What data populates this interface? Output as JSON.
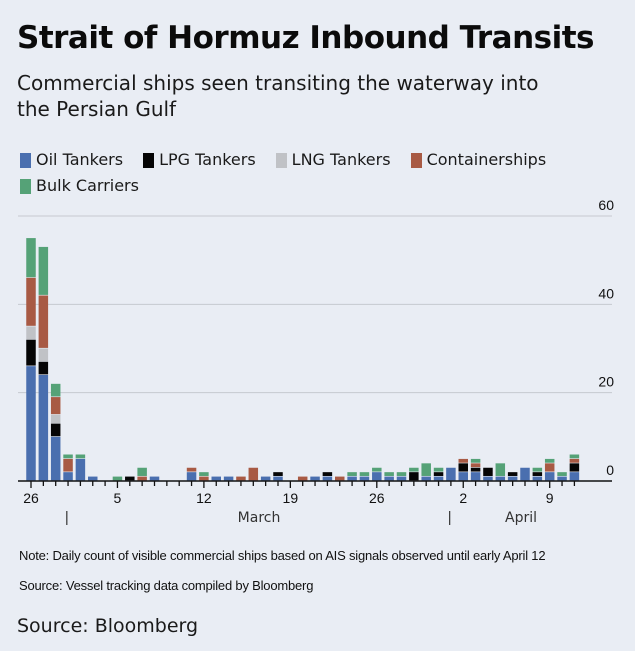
{
  "header": {
    "title": "Strait of Hormuz Inbound Transits",
    "subtitle": "Commercial ships seen transiting the waterway into the Persian Gulf"
  },
  "legend": [
    {
      "label": "Oil Tankers",
      "color": "#4a6faf"
    },
    {
      "label": "LPG Tankers",
      "color": "#050505"
    },
    {
      "label": "LNG Tankers",
      "color": "#c0c2c6"
    },
    {
      "label": "Containerships",
      "color": "#a85a44"
    },
    {
      "label": "Bulk Carriers",
      "color": "#55a277"
    }
  ],
  "footer": {
    "note": "Note: Daily count of visible commercial ships based on AIS signals observed until early April 12",
    "source_detail": "Source: Vessel tracking data compiled by Bloomberg",
    "source": "Source: Bloomberg"
  },
  "chart_data": {
    "type": "bar",
    "stacked": true,
    "title": "Strait of Hormuz Inbound Transits",
    "subtitle": "Commercial ships seen transiting the waterway into the Persian Gulf",
    "xlabel": "",
    "ylabel": "",
    "ylim": [
      0,
      60
    ],
    "yticks": [
      0,
      20,
      40,
      60
    ],
    "y_axis_position": "right",
    "grid": true,
    "legend_position": "top",
    "x_tick_labels": [
      {
        "index": 0,
        "label": "26"
      },
      {
        "index": 7,
        "label": "5"
      },
      {
        "index": 14,
        "label": "12"
      },
      {
        "index": 21,
        "label": "19"
      },
      {
        "index": 28,
        "label": "26"
      },
      {
        "index": 35,
        "label": "2"
      },
      {
        "index": 42,
        "label": "9"
      }
    ],
    "month_labels": [
      {
        "label": "March",
        "start_index": 3,
        "end_index": 33
      },
      {
        "label": "April",
        "start_index": 34,
        "end_index": 45
      }
    ],
    "categories": [
      "Feb 26",
      "Feb 27",
      "Feb 28",
      "Mar 1",
      "Mar 2",
      "Mar 3",
      "Mar 4",
      "Mar 5",
      "Mar 6",
      "Mar 7",
      "Mar 8",
      "Mar 9",
      "Mar 10",
      "Mar 11",
      "Mar 12",
      "Mar 13",
      "Mar 14",
      "Mar 15",
      "Mar 16",
      "Mar 17",
      "Mar 18",
      "Mar 19",
      "Mar 20",
      "Mar 21",
      "Mar 22",
      "Mar 23",
      "Mar 24",
      "Mar 25",
      "Mar 26",
      "Mar 27",
      "Mar 28",
      "Mar 29",
      "Mar 30",
      "Mar 31",
      "Apr 1",
      "Apr 2",
      "Apr 3",
      "Apr 4",
      "Apr 5",
      "Apr 6",
      "Apr 7",
      "Apr 8",
      "Apr 9",
      "Apr 10",
      "Apr 11"
    ],
    "series": [
      {
        "name": "Oil Tankers",
        "color": "#4a6faf",
        "values": [
          26,
          24,
          10,
          2,
          5,
          1,
          0,
          0,
          0,
          0,
          1,
          0,
          0,
          2,
          0,
          1,
          1,
          0,
          0,
          1,
          1,
          0,
          0,
          1,
          1,
          0,
          1,
          1,
          2,
          1,
          1,
          0,
          1,
          1,
          3,
          2,
          2,
          1,
          1,
          1,
          3,
          1,
          2,
          1,
          2
        ]
      },
      {
        "name": "LPG Tankers",
        "color": "#050505",
        "values": [
          6,
          3,
          3,
          0,
          0,
          0,
          0,
          0,
          1,
          0,
          0,
          0,
          0,
          0,
          0,
          0,
          0,
          0,
          0,
          0,
          1,
          0,
          0,
          0,
          1,
          0,
          0,
          0,
          0,
          0,
          0,
          2,
          0,
          1,
          0,
          2,
          1,
          2,
          0,
          1,
          0,
          1,
          0,
          0,
          2
        ]
      },
      {
        "name": "LNG Tankers",
        "color": "#c0c2c6",
        "values": [
          3,
          3,
          2,
          0,
          0,
          0,
          0,
          0,
          0,
          0,
          0,
          0,
          0,
          0,
          0,
          0,
          0,
          0,
          0,
          0,
          0,
          0,
          0,
          0,
          0,
          0,
          0,
          0,
          0,
          0,
          0,
          0,
          0,
          0,
          0,
          0,
          0,
          0,
          0,
          0,
          0,
          0,
          0,
          0,
          0
        ]
      },
      {
        "name": "Containerships",
        "color": "#a85a44",
        "values": [
          11,
          12,
          4,
          3,
          0,
          0,
          0,
          0,
          0,
          1,
          0,
          0,
          0,
          1,
          1,
          0,
          0,
          1,
          3,
          0,
          0,
          0,
          1,
          0,
          0,
          1,
          0,
          0,
          0,
          0,
          0,
          0,
          0,
          0,
          0,
          1,
          1,
          0,
          0,
          0,
          0,
          0,
          2,
          0,
          1
        ]
      },
      {
        "name": "Bulk Carriers",
        "color": "#55a277",
        "values": [
          9,
          11,
          3,
          1,
          1,
          0,
          0,
          1,
          0,
          2,
          0,
          0,
          0,
          0,
          1,
          0,
          0,
          0,
          0,
          0,
          0,
          0,
          0,
          0,
          0,
          0,
          1,
          1,
          1,
          1,
          1,
          1,
          3,
          1,
          0,
          0,
          1,
          0,
          3,
          0,
          0,
          1,
          1,
          1,
          1
        ]
      }
    ]
  }
}
